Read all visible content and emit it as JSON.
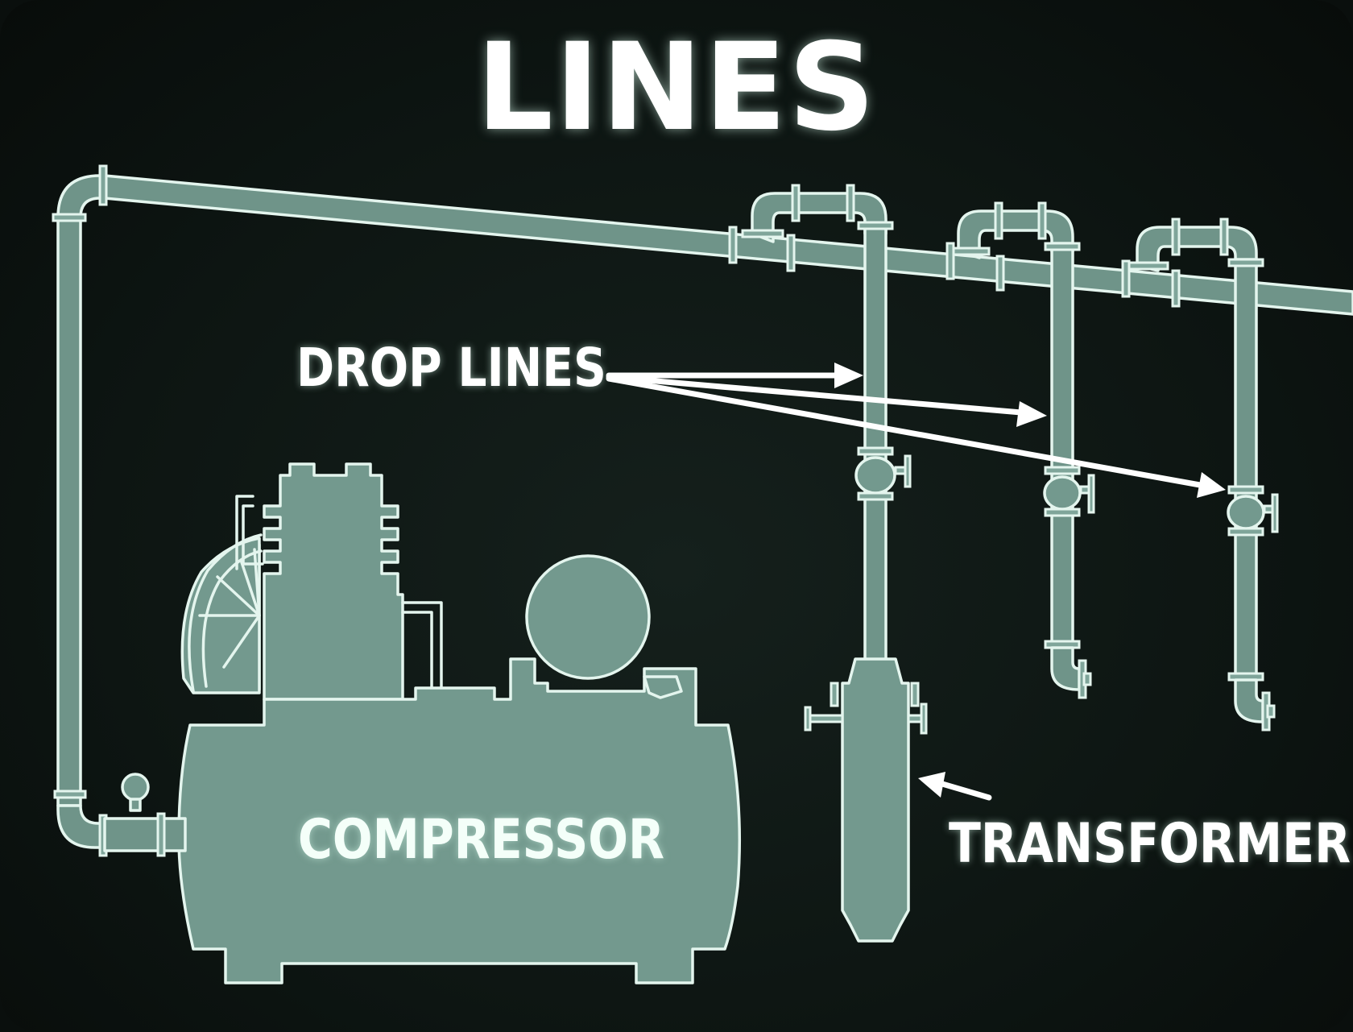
{
  "title": "LINES",
  "labels": {
    "drop_lines": "DROP LINES",
    "compressor": "COMPRESSOR",
    "transformer": "TRANSFORMER"
  },
  "colors": {
    "background": "#0d1512",
    "line": "#e4f5ee",
    "fill": "#73998e",
    "text": "#ffffff"
  }
}
